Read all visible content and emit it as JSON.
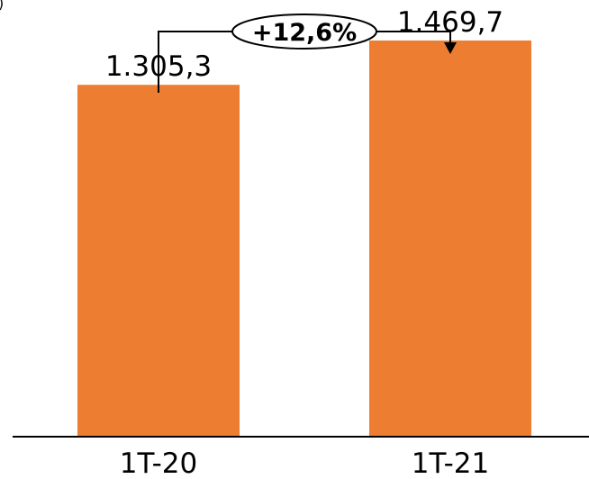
{
  "corner_text": ")",
  "colors": {
    "bar": "#ED7D31",
    "text": "#000000",
    "axis": "#000000",
    "background": "#FFFFFF"
  },
  "chart_data": {
    "type": "bar",
    "categories": [
      "1T-20",
      "1T-21"
    ],
    "values": [
      1305.3,
      1469.7
    ],
    "value_labels": [
      "1.305,3",
      "1.469,7"
    ],
    "title": "",
    "xlabel": "",
    "ylabel": "",
    "ylim": [
      0,
      1620
    ],
    "grid": false,
    "legend": "none",
    "annotation": {
      "text": "+12,6%",
      "from_category": "1T-20",
      "to_category": "1T-21"
    }
  }
}
